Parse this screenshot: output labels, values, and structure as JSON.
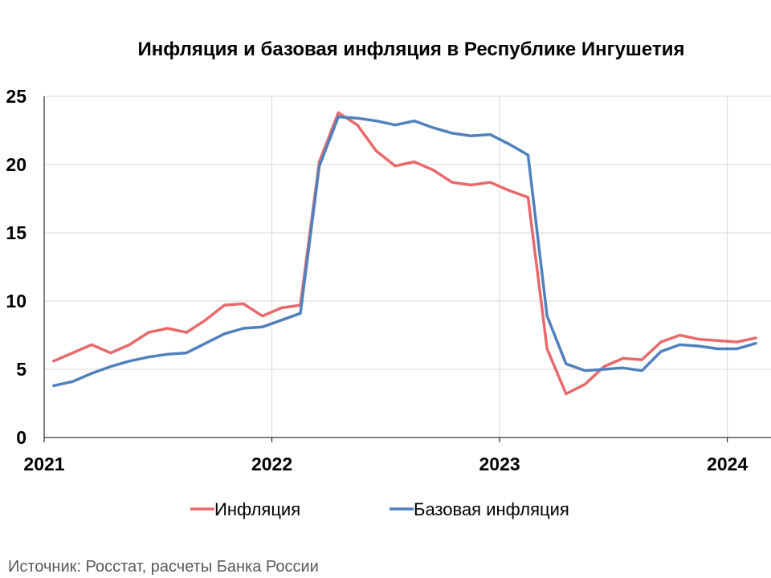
{
  "chart_data": {
    "type": "line",
    "title": "Инфляция и базовая инфляция в Республике Ингушетия",
    "source": "Источник: Росстат, расчеты Банка России",
    "xlabel": "",
    "ylabel": "",
    "ylim": [
      0,
      25
    ],
    "yticks": [
      0,
      5,
      10,
      15,
      20,
      25
    ],
    "xlim": [
      0,
      38.3
    ],
    "xticks": [
      {
        "label": "2021",
        "pos": 0
      },
      {
        "label": "2022",
        "pos": 12
      },
      {
        "label": "2023",
        "pos": 24
      },
      {
        "label": "2024",
        "pos": 36
      }
    ],
    "grid": true,
    "legend_position": "bottom",
    "colors": {
      "inflation": "#e8696c",
      "core": "#4f81bd"
    },
    "x": [
      "2021-01",
      "2021-02",
      "2021-03",
      "2021-04",
      "2021-05",
      "2021-06",
      "2021-07",
      "2021-08",
      "2021-09",
      "2021-10",
      "2021-11",
      "2021-12",
      "2022-01",
      "2022-02",
      "2022-03",
      "2022-04",
      "2022-05",
      "2022-06",
      "2022-07",
      "2022-08",
      "2022-09",
      "2022-10",
      "2022-11",
      "2022-12",
      "2023-01",
      "2023-02",
      "2023-03",
      "2023-04",
      "2023-05",
      "2023-06",
      "2023-07",
      "2023-08",
      "2023-09",
      "2023-10",
      "2023-11",
      "2023-12",
      "2024-01",
      "2024-02"
    ],
    "series": [
      {
        "name": "Инфляция",
        "color": "#e8696c",
        "values": [
          5.6,
          6.2,
          6.8,
          6.2,
          6.8,
          7.7,
          8.0,
          7.7,
          8.6,
          9.7,
          9.8,
          8.9,
          9.5,
          9.7,
          20.2,
          23.8,
          22.9,
          21.0,
          19.9,
          20.2,
          19.6,
          18.7,
          18.5,
          18.7,
          18.1,
          17.6,
          6.5,
          3.2,
          3.9,
          5.2,
          5.8,
          5.7,
          7.0,
          7.5,
          7.2,
          7.1,
          7.0,
          7.3
        ]
      },
      {
        "name": "Базовая инфляция",
        "color": "#4f81bd",
        "values": [
          3.8,
          4.1,
          4.7,
          5.2,
          5.6,
          5.9,
          6.1,
          6.2,
          6.9,
          7.6,
          8.0,
          8.1,
          8.6,
          9.1,
          19.9,
          23.5,
          23.4,
          23.2,
          22.9,
          23.2,
          22.7,
          22.3,
          22.1,
          22.2,
          21.5,
          20.7,
          8.9,
          5.4,
          4.9,
          5.0,
          5.1,
          4.9,
          6.3,
          6.8,
          6.7,
          6.5,
          6.5,
          6.9
        ]
      }
    ]
  }
}
